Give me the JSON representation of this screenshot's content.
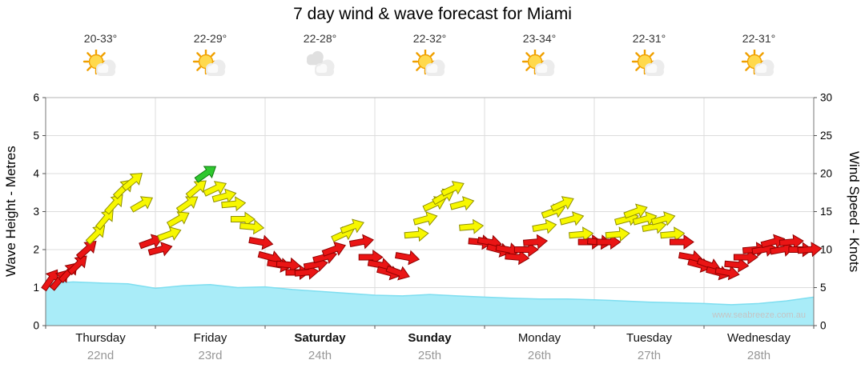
{
  "watermark": "www.seabreeze.com.au",
  "days": [
    {
      "name": "Thursday",
      "date": "22nd",
      "temp": "20-33°",
      "icon": "partly-cloudy",
      "weekend": false
    },
    {
      "name": "Friday",
      "date": "23rd",
      "temp": "22-29°",
      "icon": "partly-cloudy",
      "weekend": false
    },
    {
      "name": "Saturday",
      "date": "24th",
      "temp": "22-28°",
      "icon": "cloudy",
      "weekend": true
    },
    {
      "name": "Sunday",
      "date": "25th",
      "temp": "22-32°",
      "icon": "partly-cloudy",
      "weekend": true
    },
    {
      "name": "Monday",
      "date": "26th",
      "temp": "23-34°",
      "icon": "partly-cloudy",
      "weekend": false
    },
    {
      "name": "Tuesday",
      "date": "27th",
      "temp": "22-31°",
      "icon": "partly-cloudy",
      "weekend": false
    },
    {
      "name": "Wednesday",
      "date": "28th",
      "temp": "22-31°",
      "icon": "partly-cloudy",
      "weekend": false
    }
  ],
  "icons": {
    "sun": "#ffd94d",
    "ray": "#f0a000",
    "cloud": "#ececec",
    "cloud_dark": "#e0e0e0",
    "highlight": "#fafafa"
  },
  "chart_data": {
    "type": "combo",
    "title": "7 day wind & wave forecast for Miami",
    "xlabel": "",
    "categories": [
      "Thursday 22nd",
      "Friday 23rd",
      "Saturday 24th",
      "Sunday 25th",
      "Monday 26th",
      "Tuesday 27th",
      "Wednesday 28th"
    ],
    "grid": true,
    "left_axis": {
      "label": "Wave Height - Metres",
      "min": 0,
      "max": 6,
      "step": 1
    },
    "right_axis": {
      "label": "Wind Speed - Knots",
      "min": 0,
      "max": 30,
      "step": 5
    },
    "wave_series": {
      "name": "Wave height (metres)",
      "style": "area",
      "fill": "#a9ecf8",
      "stroke": "#7edef0",
      "points": [
        [
          0,
          1.1
        ],
        [
          0.25,
          1.15
        ],
        [
          0.5,
          1.12
        ],
        [
          0.75,
          1.1
        ],
        [
          1.0,
          0.98
        ],
        [
          1.25,
          1.05
        ],
        [
          1.5,
          1.08
        ],
        [
          1.75,
          1.0
        ],
        [
          2.0,
          1.02
        ],
        [
          2.25,
          0.95
        ],
        [
          2.5,
          0.9
        ],
        [
          2.75,
          0.85
        ],
        [
          3.0,
          0.8
        ],
        [
          3.25,
          0.78
        ],
        [
          3.5,
          0.82
        ],
        [
          3.75,
          0.78
        ],
        [
          4.0,
          0.75
        ],
        [
          4.25,
          0.72
        ],
        [
          4.5,
          0.7
        ],
        [
          4.75,
          0.7
        ],
        [
          5.0,
          0.68
        ],
        [
          5.25,
          0.65
        ],
        [
          5.5,
          0.62
        ],
        [
          5.75,
          0.6
        ],
        [
          6.0,
          0.58
        ],
        [
          6.25,
          0.55
        ],
        [
          6.5,
          0.58
        ],
        [
          6.75,
          0.65
        ],
        [
          7.0,
          0.75
        ]
      ]
    },
    "wind_colors": {
      "light": "#ea1515",
      "light_outline": "#8f0000",
      "moderate": "#f7f700",
      "moderate_outline": "#8f8f00",
      "moderate_min": 12,
      "strong": "#2fc82f",
      "strong_outline": "#0f7a0f",
      "strong_min": 19.5
    },
    "wind_series": {
      "name": "Wind speed (knots) with direction arrows",
      "style": "arrows",
      "points": [
        [
          0.042,
          6,
          -55
        ],
        [
          0.125,
          6,
          -50
        ],
        [
          0.208,
          7,
          -48
        ],
        [
          0.292,
          8,
          -45
        ],
        [
          0.375,
          10,
          -42
        ],
        [
          0.458,
          12,
          -45
        ],
        [
          0.542,
          14,
          -50
        ],
        [
          0.625,
          16,
          -48
        ],
        [
          0.708,
          18,
          -45
        ],
        [
          0.792,
          19,
          -40
        ],
        [
          0.875,
          16,
          -30
        ],
        [
          0.958,
          11,
          -20
        ],
        [
          1.042,
          10,
          -15
        ],
        [
          1.125,
          12,
          -20
        ],
        [
          1.208,
          14,
          -30
        ],
        [
          1.292,
          16,
          -35
        ],
        [
          1.375,
          18,
          -40
        ],
        [
          1.458,
          20,
          -35
        ],
        [
          1.542,
          18,
          -25
        ],
        [
          1.625,
          17,
          -15
        ],
        [
          1.708,
          16,
          -5
        ],
        [
          1.792,
          14,
          0
        ],
        [
          1.875,
          13,
          5
        ],
        [
          1.958,
          11,
          10
        ],
        [
          2.042,
          9,
          15
        ],
        [
          2.125,
          8,
          10
        ],
        [
          2.208,
          8,
          5
        ],
        [
          2.292,
          7,
          0
        ],
        [
          2.375,
          7,
          -5
        ],
        [
          2.458,
          8,
          -10
        ],
        [
          2.542,
          9,
          -15
        ],
        [
          2.625,
          10,
          -20
        ],
        [
          2.708,
          12,
          -25
        ],
        [
          2.792,
          13,
          -20
        ],
        [
          2.875,
          11,
          -10
        ],
        [
          2.958,
          9,
          0
        ],
        [
          3.042,
          8,
          10
        ],
        [
          3.125,
          7,
          15
        ],
        [
          3.208,
          7,
          20
        ],
        [
          3.292,
          9,
          10
        ],
        [
          3.375,
          12,
          -5
        ],
        [
          3.458,
          14,
          -15
        ],
        [
          3.542,
          16,
          -25
        ],
        [
          3.625,
          17,
          -30
        ],
        [
          3.708,
          18,
          -25
        ],
        [
          3.792,
          16,
          -15
        ],
        [
          3.875,
          13,
          -5
        ],
        [
          3.958,
          11,
          5
        ],
        [
          4.042,
          11,
          10
        ],
        [
          4.125,
          10,
          15
        ],
        [
          4.208,
          10,
          10
        ],
        [
          4.292,
          9,
          5
        ],
        [
          4.375,
          10,
          0
        ],
        [
          4.458,
          11,
          -5
        ],
        [
          4.542,
          13,
          -10
        ],
        [
          4.625,
          15,
          -20
        ],
        [
          4.708,
          16,
          -25
        ],
        [
          4.792,
          14,
          -15
        ],
        [
          4.875,
          12,
          -5
        ],
        [
          4.958,
          11,
          0
        ],
        [
          5.042,
          11,
          5
        ],
        [
          5.125,
          11,
          0
        ],
        [
          5.208,
          12,
          -5
        ],
        [
          5.292,
          14,
          -15
        ],
        [
          5.375,
          15,
          -20
        ],
        [
          5.458,
          14,
          -15
        ],
        [
          5.542,
          13,
          -10
        ],
        [
          5.625,
          14,
          -15
        ],
        [
          5.708,
          12,
          -5
        ],
        [
          5.792,
          11,
          0
        ],
        [
          5.875,
          9,
          10
        ],
        [
          5.958,
          8,
          15
        ],
        [
          6.042,
          8,
          20
        ],
        [
          6.125,
          7,
          15
        ],
        [
          6.208,
          7,
          10
        ],
        [
          6.292,
          8,
          5
        ],
        [
          6.375,
          9,
          0
        ],
        [
          6.458,
          10,
          -5
        ],
        [
          6.542,
          10,
          -10
        ],
        [
          6.625,
          11,
          -15
        ],
        [
          6.708,
          10,
          -10
        ],
        [
          6.792,
          11,
          -5
        ],
        [
          6.875,
          10,
          0
        ],
        [
          6.958,
          10,
          -5
        ]
      ]
    }
  }
}
